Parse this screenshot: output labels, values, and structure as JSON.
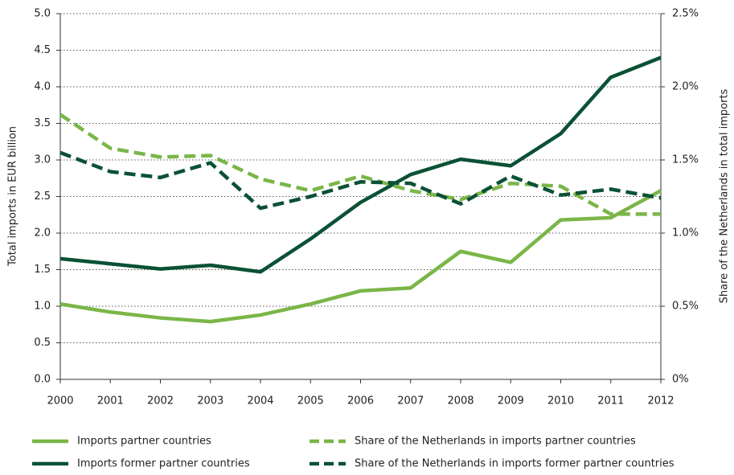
{
  "chart_data": {
    "type": "line",
    "categories": [
      "2000",
      "2001",
      "2002",
      "2003",
      "2004",
      "2005",
      "2006",
      "2007",
      "2008",
      "2009",
      "2010",
      "2011",
      "2012"
    ],
    "ylabel": "Total imports in EUR billion",
    "y2label": "Share of the Netherlands in total imports",
    "ylim": [
      0,
      5
    ],
    "yticks": [
      {
        "value": 0,
        "label": "0.0"
      },
      0.5,
      {
        "value": 1,
        "label": "1.0"
      },
      1.5,
      {
        "value": 2,
        "label": "2.0"
      },
      2.5,
      {
        "value": 3,
        "label": "3.0"
      },
      3.5,
      {
        "value": 4,
        "label": "4.0"
      },
      4.5,
      {
        "value": 5,
        "label": "5.0"
      }
    ],
    "y2lim": [
      0,
      2.5
    ],
    "y2ticks": [
      {
        "value": 0,
        "label": "0%"
      },
      {
        "value": 0.5,
        "label": "0.5%"
      },
      {
        "value": 1,
        "label": "1.0%"
      },
      {
        "value": 1.5,
        "label": "1.5%"
      },
      {
        "value": 2,
        "label": "2.0%"
      },
      {
        "value": 2.5,
        "label": "2.5%"
      }
    ],
    "grid": true,
    "legend": "bottom",
    "series": [
      {
        "name": "Imports partner countries",
        "color": "#7ab648",
        "dashed": false,
        "values": [
          1.03,
          0.92,
          0.84,
          0.79,
          0.88,
          1.03,
          1.21,
          1.25,
          1.75,
          1.6,
          2.18,
          2.21,
          2.58
        ]
      },
      {
        "name": "Imports former partner countries",
        "color": "#0b5135",
        "dashed": false,
        "values": [
          1.65,
          1.58,
          1.51,
          1.56,
          1.47,
          1.92,
          2.42,
          2.8,
          3.01,
          2.92,
          3.36,
          4.13,
          4.4
        ]
      },
      {
        "name": "Share of the Netherlands in imports partner countries",
        "color": "#7ab648",
        "dashed": true,
        "axis": "y2",
        "values": [
          1.81,
          1.58,
          1.52,
          1.53,
          1.37,
          1.29,
          1.39,
          1.29,
          1.23,
          1.34,
          1.32,
          1.13,
          1.13
        ]
      },
      {
        "name": "Share of the Netherlands in imports former partner countries",
        "color": "#0b5135",
        "dashed": true,
        "axis": "y2",
        "values": [
          1.55,
          1.42,
          1.38,
          1.48,
          1.17,
          1.25,
          1.35,
          1.34,
          1.2,
          1.39,
          1.26,
          1.3,
          1.24
        ]
      }
    ]
  }
}
